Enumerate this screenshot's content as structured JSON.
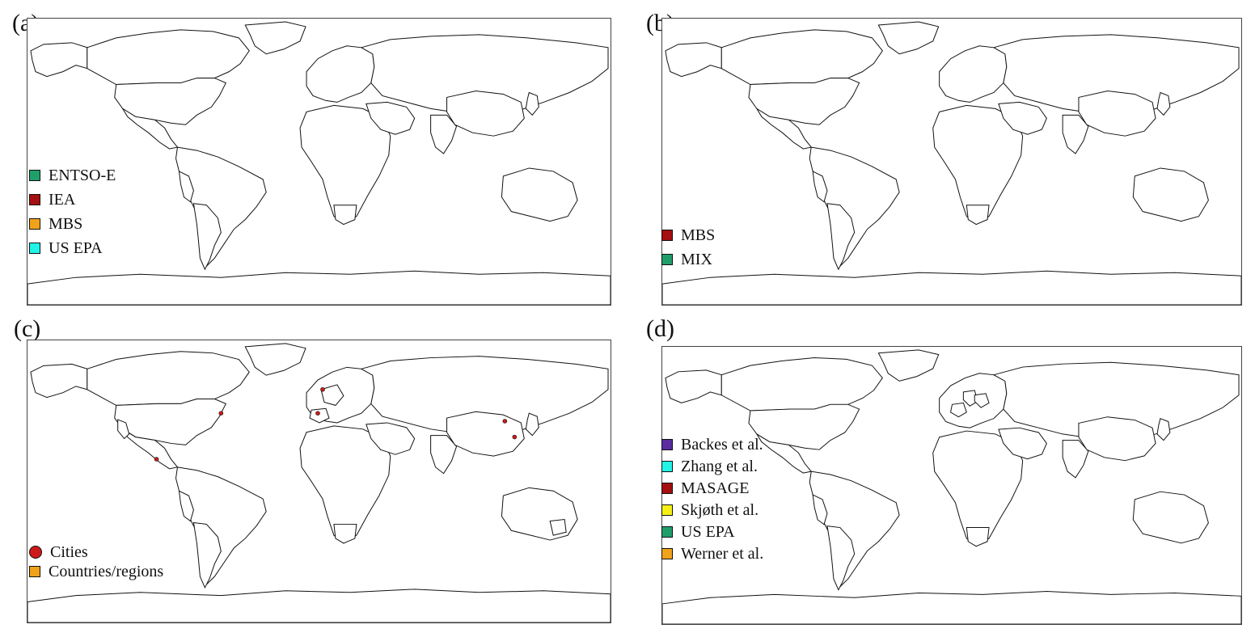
{
  "panels": [
    {
      "label": "(a)",
      "legend": [
        {
          "name": "ENTSO-E",
          "color": "#1f9e6a"
        },
        {
          "name": "IEA",
          "color": "#a50f0f"
        },
        {
          "name": "MBS",
          "color": "#f0a21b"
        },
        {
          "name": "US EPA",
          "color": "#21f3e6"
        }
      ],
      "regions": {
        "alaska": "#21f3e6",
        "usa": "#21f3e6",
        "canada": "#a50f0f",
        "mexico": "#a50f0f",
        "south_america": "#ffffff",
        "chile_argentina": "#f0a21b",
        "peru": "#f0a21b",
        "europe": "#1f9e6a",
        "russia_asia": "#f0a21b",
        "africa": "#ffffff",
        "south_africa": "#f0a21b",
        "australia": "#a50f0f",
        "japan": "#a50f0f",
        "india": "#f0a21b",
        "antarctica": "#ffffff",
        "greenland": "#a50f0f",
        "china": "#f0a21b",
        "mideast": "#f0a21b"
      }
    },
    {
      "label": "(b)",
      "legend": [
        {
          "name": "MBS",
          "color": "#a50f0f"
        },
        {
          "name": "MIX",
          "color": "#1f9e6a"
        }
      ],
      "regions": {
        "alaska": "#a50f0f",
        "usa": "#a50f0f",
        "canada": "#a50f0f",
        "mexico": "#a50f0f",
        "south_america": "#a50f0f",
        "chile_argentina": "#a50f0f",
        "peru": "#a50f0f",
        "europe": "#a50f0f",
        "russia_asia": "#a50f0f",
        "africa": "#ffffff",
        "south_africa": "#a50f0f",
        "australia": "#ffffff",
        "japan": "#a50f0f",
        "india": "#a50f0f",
        "antarctica": "#ffffff",
        "greenland": "#a50f0f",
        "china": "#1f9e6a",
        "mideast": "#a50f0f"
      }
    },
    {
      "label": "(c)",
      "legend": [
        {
          "name": "Cities",
          "color": "#cc1a1a",
          "shape": "circle"
        },
        {
          "name": "Countries/regions",
          "color": "#f0a21b",
          "shape": "square"
        }
      ],
      "regions": {
        "alaska": "#ffffff",
        "usa": "#ffffff",
        "canada": "#ffffff",
        "mexico": "#ffffff",
        "south_america": "#ffffff",
        "chile_argentina": "#ffffff",
        "peru": "#ffffff",
        "europe": "#ffffff",
        "russia_asia": "#ffffff",
        "africa": "#ffffff",
        "south_africa": "#ffffff",
        "australia": "#ffffff",
        "japan": "#ffffff",
        "india": "#ffffff",
        "antarctica": "#ffffff",
        "greenland": "#ffffff",
        "china": "#ffffff",
        "mideast": "#ffffff"
      },
      "highlights": [
        {
          "name": "california",
          "color": "#f0a21b"
        },
        {
          "name": "spain",
          "color": "#f0a21b"
        },
        {
          "name": "western_europe",
          "color": "#f0a21b"
        },
        {
          "name": "australia_se",
          "color": "#f0a21b"
        }
      ],
      "cities": [
        "mexico_city",
        "new_york",
        "beijing",
        "shanghai",
        "london",
        "madrid"
      ]
    },
    {
      "label": "(d)",
      "legend": [
        {
          "name": "Backes et al.",
          "color": "#5a2ca0"
        },
        {
          "name": "Zhang et al.",
          "color": "#21f3e6"
        },
        {
          "name": "MASAGE",
          "color": "#a50f0f"
        },
        {
          "name": "Skjøth et al.",
          "color": "#f5f016"
        },
        {
          "name": "US EPA",
          "color": "#1f9e6a"
        },
        {
          "name": "Werner et al.",
          "color": "#f0a21b"
        }
      ],
      "regions": {
        "alaska": "#3aa61b",
        "usa": "#3aa61b",
        "canada": "#a50f0f",
        "mexico": "#a50f0f",
        "south_america": "#a50f0f",
        "chile_argentina": "#a50f0f",
        "peru": "#a50f0f",
        "europe": "#a50f0f",
        "russia_asia": "#a50f0f",
        "africa": "#a50f0f",
        "south_africa": "#a50f0f",
        "australia": "#a50f0f",
        "japan": "#a50f0f",
        "india": "#a50f0f",
        "antarctica": "#a50f0f",
        "greenland": "#a50f0f",
        "china": "#21f3e6",
        "mideast": "#a50f0f"
      },
      "highlights": [
        {
          "name": "france",
          "color": "#5a2ca0"
        },
        {
          "name": "denmark_germany",
          "color": "#f5f016"
        },
        {
          "name": "poland",
          "color": "#f0a21b"
        }
      ]
    }
  ]
}
